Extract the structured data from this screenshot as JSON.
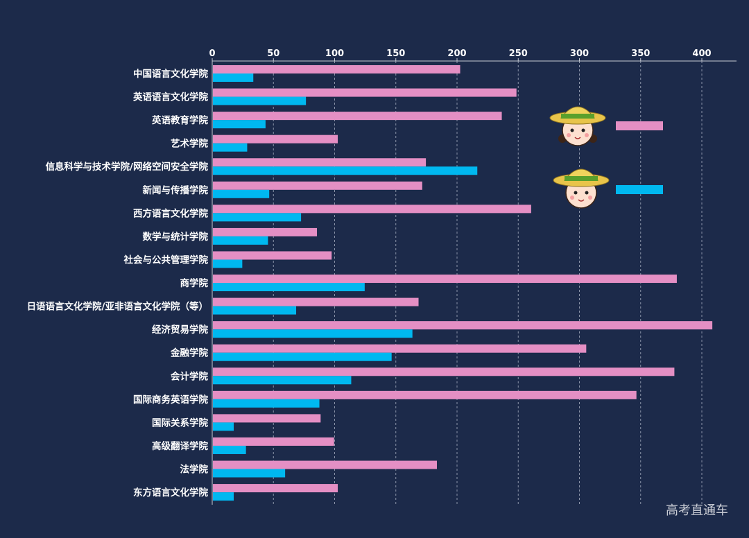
{
  "chart_data": {
    "type": "bar",
    "orientation": "horizontal",
    "categories": [
      "中国语言文化学院",
      "英语语言文化学院",
      "英语教育学院",
      "艺术学院",
      "信息科学与技术学院/网络空间安全学院",
      "新闻与传播学院",
      "西方语言文化学院",
      "数学与统计学院",
      "社会与公共管理学院",
      "商学院",
      "日语语言文化学院/亚非语言文化学院（等）",
      "经济贸易学院",
      "金融学院",
      "会计学院",
      "国际商务英语学院",
      "国际关系学院",
      "高级翻译学院",
      "法学院",
      "东方语言文化学院"
    ],
    "series": [
      {
        "legend_icon": "girl-icon",
        "color": "#e48fc4",
        "values": [
          202,
          248,
          236,
          102,
          174,
          171,
          260,
          85,
          97,
          379,
          168,
          408,
          305,
          377,
          346,
          88,
          99,
          183,
          102
        ]
      },
      {
        "legend_icon": "boy-icon",
        "color": "#00b8f0",
        "values": [
          33,
          76,
          43,
          28,
          216,
          46,
          72,
          45,
          24,
          124,
          68,
          163,
          146,
          113,
          87,
          17,
          27,
          59,
          17
        ]
      }
    ],
    "xlim": [
      0,
      430
    ],
    "xticks": [
      0,
      50,
      100,
      150,
      200,
      250,
      300,
      350,
      400
    ],
    "xaxis_position": "top",
    "grid": "vertical dashed",
    "legend": "right, icons only",
    "title": "",
    "xlabel": "",
    "ylabel": ""
  },
  "watermark": "高考直通车"
}
